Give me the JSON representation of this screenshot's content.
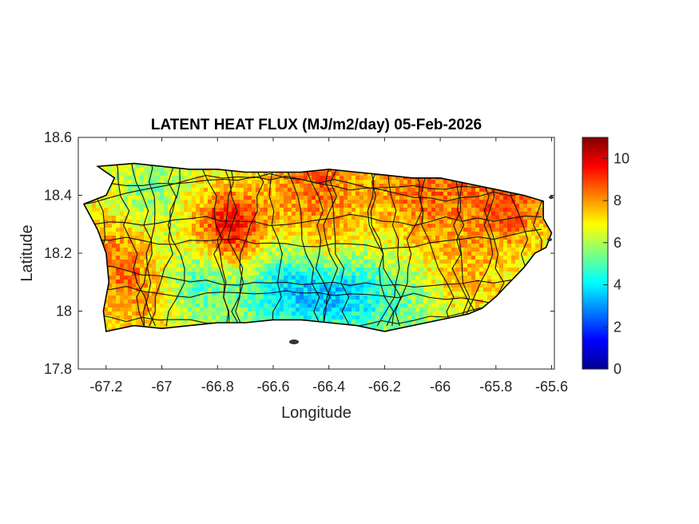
{
  "title": "LATENT HEAT FLUX (MJ/m2/day) 05-Feb-2026",
  "xlabel": "Longitude",
  "ylabel": "Latitude",
  "chart_data": {
    "type": "heatmap",
    "title": "LATENT HEAT FLUX (MJ/m2/day) 05-Feb-2026",
    "xlabel": "Longitude",
    "ylabel": "Latitude",
    "xlim": [
      -67.3,
      -65.59
    ],
    "ylim": [
      17.8,
      18.6
    ],
    "x_ticks": [
      -67.2,
      -67,
      -66.8,
      -66.6,
      -66.4,
      -66.2,
      -66,
      -65.8,
      -65.6
    ],
    "x_tick_labels": [
      "-67.2",
      "-67",
      "-66.8",
      "-66.6",
      "-66.4",
      "-66.2",
      "-66",
      "-65.8",
      "-65.6"
    ],
    "y_ticks": [
      17.8,
      18,
      18.2,
      18.4,
      18.6
    ],
    "y_tick_labels": [
      "17.8",
      "18",
      "18.2",
      "18.4",
      "18.6"
    ],
    "colorbar": {
      "colormap": "jet",
      "range": [
        0,
        11
      ],
      "ticks": [
        0,
        2,
        4,
        6,
        8,
        10
      ],
      "tick_labels": [
        "0",
        "2",
        "4",
        "6",
        "8",
        "10"
      ]
    },
    "outline_lonlat": [
      [
        -67.23,
        18.5
      ],
      [
        -67.1,
        18.51
      ],
      [
        -67.0,
        18.5
      ],
      [
        -66.9,
        18.49
      ],
      [
        -66.8,
        18.49
      ],
      [
        -66.7,
        18.48
      ],
      [
        -66.6,
        18.48
      ],
      [
        -66.5,
        18.48
      ],
      [
        -66.4,
        18.49
      ],
      [
        -66.3,
        18.48
      ],
      [
        -66.2,
        18.47
      ],
      [
        -66.1,
        18.46
      ],
      [
        -66.0,
        18.46
      ],
      [
        -65.9,
        18.44
      ],
      [
        -65.8,
        18.42
      ],
      [
        -65.7,
        18.4
      ],
      [
        -65.63,
        18.38
      ],
      [
        -65.63,
        18.32
      ],
      [
        -65.6,
        18.27
      ],
      [
        -65.62,
        18.22
      ],
      [
        -65.66,
        18.2
      ],
      [
        -65.7,
        18.15
      ],
      [
        -65.75,
        18.1
      ],
      [
        -65.8,
        18.05
      ],
      [
        -65.85,
        18.01
      ],
      [
        -65.9,
        17.99
      ],
      [
        -66.0,
        17.97
      ],
      [
        -66.1,
        17.95
      ],
      [
        -66.2,
        17.93
      ],
      [
        -66.3,
        17.95
      ],
      [
        -66.4,
        17.96
      ],
      [
        -66.5,
        17.97
      ],
      [
        -66.6,
        17.97
      ],
      [
        -66.7,
        17.96
      ],
      [
        -66.8,
        17.96
      ],
      [
        -66.9,
        17.95
      ],
      [
        -67.0,
        17.94
      ],
      [
        -67.1,
        17.95
      ],
      [
        -67.2,
        17.93
      ],
      [
        -67.21,
        18.0
      ],
      [
        -67.19,
        18.1
      ],
      [
        -67.2,
        18.2
      ],
      [
        -67.23,
        18.28
      ],
      [
        -67.28,
        18.37
      ],
      [
        -67.2,
        18.4
      ],
      [
        -67.17,
        18.46
      ],
      [
        -67.23,
        18.5
      ]
    ],
    "value_field": {
      "base": 6.5,
      "components": [
        {
          "lon": -66.75,
          "lat": 18.28,
          "amp": 3.2,
          "spread": 0.1
        },
        {
          "lon": -66.45,
          "lat": 18.45,
          "amp": 2.0,
          "spread": 0.12
        },
        {
          "lon": -66.05,
          "lat": 18.42,
          "amp": 2.0,
          "spread": 0.14
        },
        {
          "lon": -65.75,
          "lat": 18.36,
          "amp": 2.2,
          "spread": 0.1
        },
        {
          "lon": -66.42,
          "lat": 18.22,
          "amp": 1.4,
          "spread": 0.08
        },
        {
          "lon": -67.18,
          "lat": 18.18,
          "amp": 1.6,
          "spread": 0.12
        },
        {
          "lon": -67.05,
          "lat": 18.05,
          "amp": 1.2,
          "spread": 0.1
        },
        {
          "lon": -66.55,
          "lat": 18.08,
          "amp": -2.6,
          "spread": 0.12
        },
        {
          "lon": -66.35,
          "lat": 18.06,
          "amp": -2.3,
          "spread": 0.1
        },
        {
          "lon": -66.88,
          "lat": 18.1,
          "amp": -1.8,
          "spread": 0.1
        },
        {
          "lon": -66.15,
          "lat": 18.02,
          "amp": -1.2,
          "spread": 0.1
        },
        {
          "lon": -67.05,
          "lat": 18.4,
          "amp": -1.0,
          "spread": 0.08
        },
        {
          "lon": -65.9,
          "lat": 18.12,
          "amp": 1.0,
          "spread": 0.1
        }
      ]
    }
  }
}
